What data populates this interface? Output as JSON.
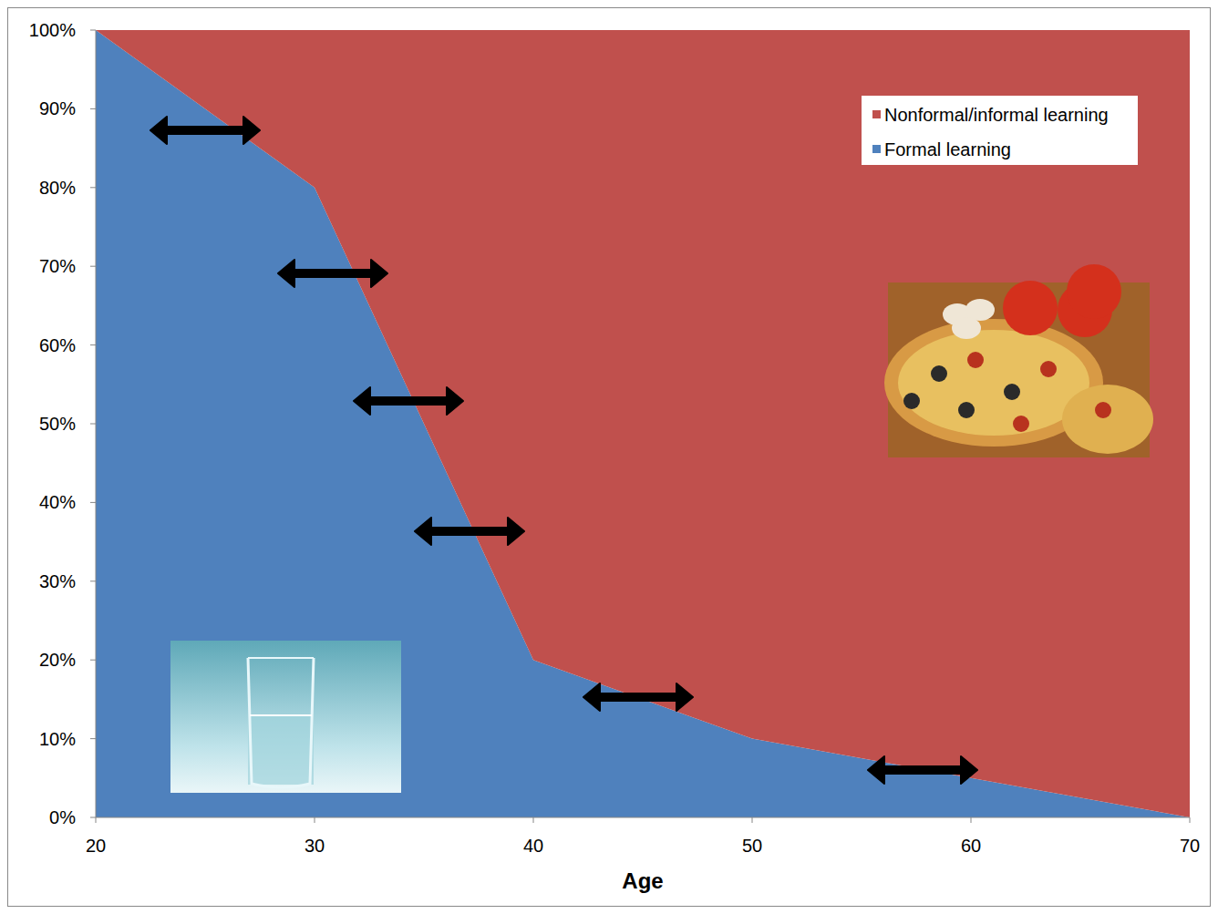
{
  "chart_data": {
    "type": "area",
    "stacked": true,
    "x_label": "Age",
    "x": [
      20,
      30,
      40,
      50,
      60,
      70
    ],
    "series": [
      {
        "name": "Formal learning",
        "color": "#4f81bd",
        "values": [
          100,
          80,
          20,
          10,
          5,
          0
        ]
      },
      {
        "name": "Nonformal/informal learning",
        "color": "#c0504d",
        "values": [
          0,
          20,
          80,
          90,
          95,
          100
        ]
      }
    ],
    "xlim": [
      20,
      70
    ],
    "xticks": [
      20,
      30,
      40,
      50,
      60,
      70
    ],
    "ylim": [
      0,
      100
    ],
    "yticks": [
      {
        "value": 0,
        "label": "0%"
      },
      {
        "value": 10,
        "label": "10%"
      },
      {
        "value": 20,
        "label": "20%"
      },
      {
        "value": 30,
        "label": "30%"
      },
      {
        "value": 40,
        "label": "40%"
      },
      {
        "value": 50,
        "label": "50%"
      },
      {
        "value": 60,
        "label": "60%"
      },
      {
        "value": 70,
        "label": "70%"
      },
      {
        "value": 80,
        "label": "80%"
      },
      {
        "value": 90,
        "label": "90%"
      },
      {
        "value": 100,
        "label": "100%"
      }
    ],
    "grid": false,
    "legend": "top-right"
  }
}
